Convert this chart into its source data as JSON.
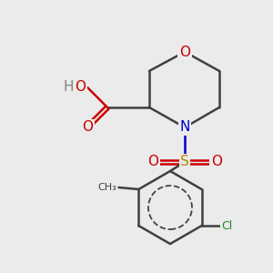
{
  "background": "#ebebeb",
  "bond_color": "#404040",
  "bond_lw": 1.8,
  "colors": {
    "O": "#cc0000",
    "N": "#0000cc",
    "S": "#b8860b",
    "Cl": "#228b22",
    "H": "#808080",
    "C": "#404040"
  },
  "font_size": 11,
  "font_size_small": 9
}
